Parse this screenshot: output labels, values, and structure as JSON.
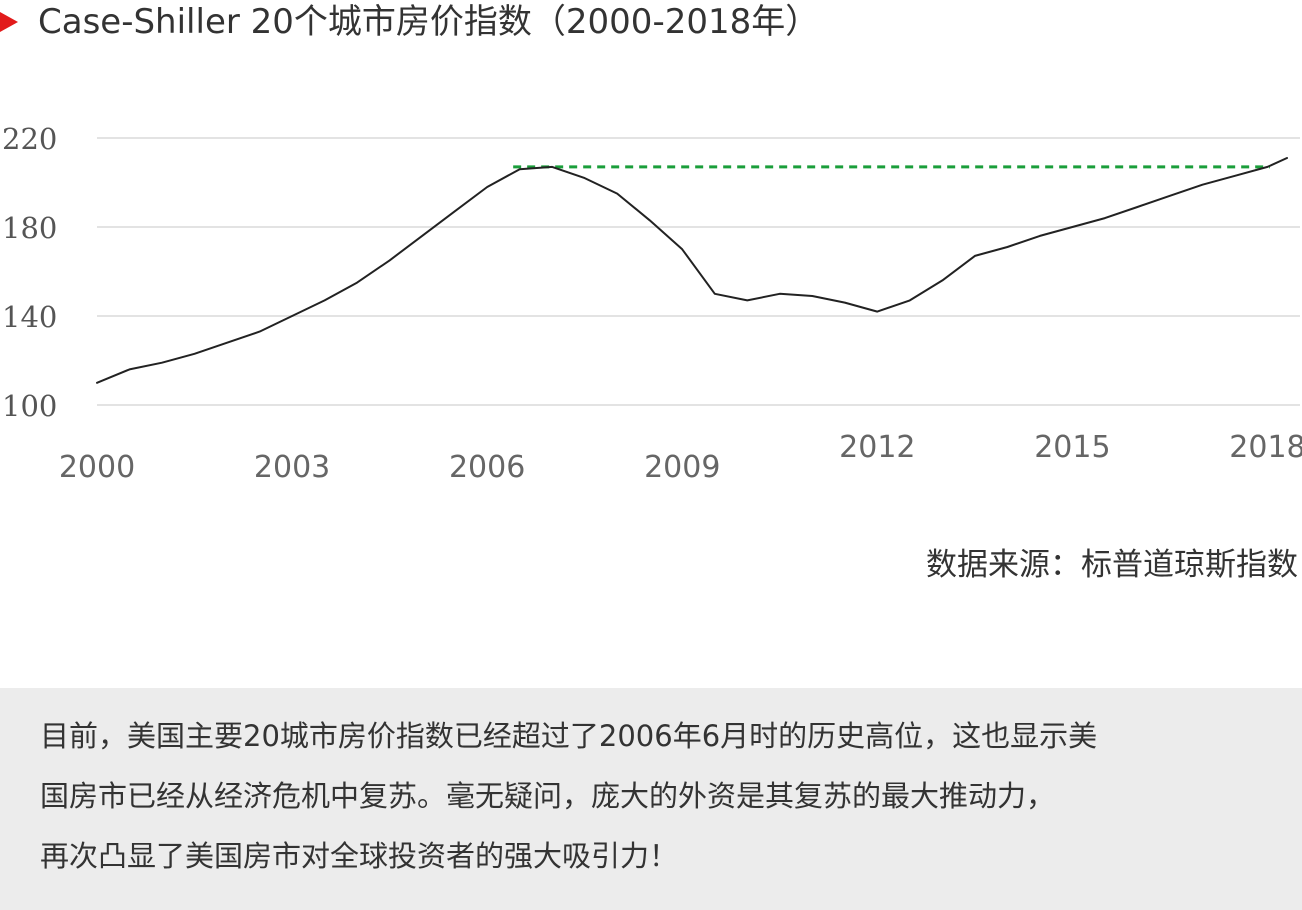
{
  "title": "Case-Shiller 20个城市房价指数（2000-2018年）",
  "source": "数据来源：标普道琼斯指数",
  "caption_lines": [
    "目前，美国主要20城市房价指数已经超过了2006年6月时的历史高位，这也显示美",
    "国房市已经从经济危机中复苏。毫无疑问，庞大的外资是其复苏的最大推动力，",
    "再次凸显了美国房市对全球投资者的强大吸引力！"
  ],
  "colors": {
    "accent": "#e21b1b",
    "line": "#222222",
    "reference_line": "#1a9e3a",
    "grid": "#e3e3e3",
    "caption_bg": "#ececec"
  },
  "chart_data": {
    "type": "line",
    "title": "Case-Shiller 20个城市房价指数（2000-2018年）",
    "xlabel": "",
    "ylabel": "",
    "xlim": [
      2000,
      2018.5
    ],
    "ylim": [
      100,
      220
    ],
    "yticks": [
      100,
      140,
      180,
      220
    ],
    "xticks": [
      {
        "label": "2000",
        "x": 2000,
        "row": "low"
      },
      {
        "label": "2003",
        "x": 2003,
        "row": "low"
      },
      {
        "label": "2006",
        "x": 2006,
        "row": "low"
      },
      {
        "label": "2009",
        "x": 2009,
        "row": "low"
      },
      {
        "label": "2012",
        "x": 2012,
        "row": "high"
      },
      {
        "label": "2015",
        "x": 2015,
        "row": "high"
      },
      {
        "label": "2018",
        "x": 2018,
        "row": "high"
      }
    ],
    "grid": true,
    "reference_line": {
      "y": 207,
      "x_from": 2006.4,
      "x_to": 2018.5,
      "style": "dashed"
    },
    "series": [
      {
        "x": [
          2000.0,
          2000.5,
          2001.0,
          2001.5,
          2002.0,
          2002.5,
          2003.0,
          2003.5,
          2004.0,
          2004.5,
          2005.0,
          2005.5,
          2006.0,
          2006.5,
          2007.0,
          2007.5,
          2008.0,
          2008.5,
          2009.0,
          2009.5,
          2010.0,
          2010.5,
          2011.0,
          2011.5,
          2012.0,
          2012.5,
          2013.0,
          2013.5,
          2014.0,
          2014.5,
          2015.0,
          2015.5,
          2016.0,
          2016.5,
          2017.0,
          2017.5,
          2018.0,
          2018.3
        ],
        "y": [
          110,
          116,
          119,
          123,
          128,
          133,
          140,
          147,
          155,
          165,
          176,
          187,
          198,
          206,
          207,
          202,
          195,
          183,
          170,
          150,
          147,
          150,
          149,
          146,
          142,
          147,
          156,
          167,
          171,
          176,
          180,
          184,
          189,
          194,
          199,
          203,
          207,
          211
        ]
      }
    ]
  }
}
